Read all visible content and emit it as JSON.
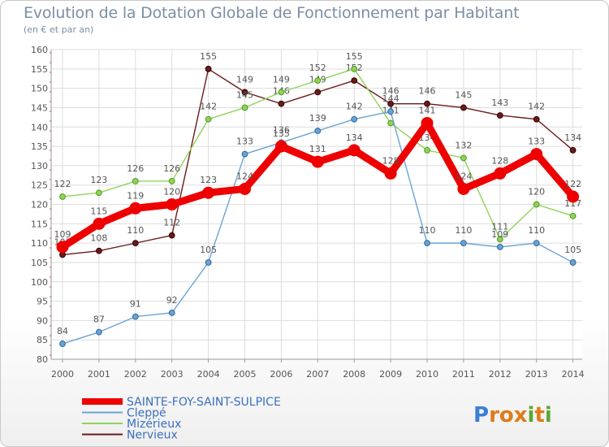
{
  "header": {
    "title": "Evolution de la Dotation Globale de Fonctionnement par Habitant",
    "subtitle": "(en € et par an)"
  },
  "logo": {
    "text": "Proxiti",
    "letters": [
      "P",
      "r",
      "o",
      "x",
      "i",
      "t",
      "i"
    ],
    "colors": [
      "#3a7fd5",
      "#e07b1a",
      "#e07b1a",
      "#e07b1a",
      "#5aa832",
      "#e07b1a",
      "#5aa832"
    ]
  },
  "chart_data": {
    "type": "line",
    "title": "Evolution de la Dotation Globale de Fonctionnement par Habitant",
    "subtitle": "(en € et par an)",
    "xlabel": "",
    "ylabel": "",
    "ylim": [
      80,
      160
    ],
    "yticks": [
      80,
      85,
      90,
      95,
      100,
      105,
      110,
      115,
      120,
      125,
      130,
      135,
      140,
      145,
      150,
      155,
      160
    ],
    "categories": [
      "2000",
      "2001",
      "2002",
      "2003",
      "2004",
      "2005",
      "2006",
      "2007",
      "2008",
      "2009",
      "2010",
      "2011",
      "2012",
      "2013",
      "2014"
    ],
    "grid": true,
    "legend_position": "bottom-left",
    "series": [
      {
        "name": "Nervieux",
        "color": "#6b1a1a",
        "labels_shown": true,
        "values": [
          107,
          108,
          110,
          112,
          155,
          149,
          146,
          149,
          152,
          146,
          146,
          145,
          143,
          142,
          134
        ]
      },
      {
        "name": "Mizérieux",
        "color": "#8fd45a",
        "labels_shown": true,
        "values": [
          122,
          123,
          126,
          126,
          142,
          145,
          149,
          152,
          155,
          141,
          134,
          132,
          111,
          120,
          117
        ]
      },
      {
        "name": "Cleppé",
        "color": "#6aa3d5",
        "labels_shown": true,
        "values": [
          84,
          87,
          91,
          92,
          105,
          133,
          136,
          139,
          142,
          144,
          110,
          110,
          109,
          110,
          105
        ]
      },
      {
        "name": "SAINTE-FOY-SAINT-SULPICE",
        "color": "#ee0000",
        "labels_shown": true,
        "values": [
          109,
          115,
          119,
          120,
          123,
          124,
          135,
          131,
          134,
          128,
          141,
          124,
          128,
          133,
          122
        ]
      }
    ],
    "legend_order": [
      "SAINTE-FOY-SAINT-SULPICE",
      "Cleppé",
      "Mizérieux",
      "Nervieux"
    ]
  }
}
